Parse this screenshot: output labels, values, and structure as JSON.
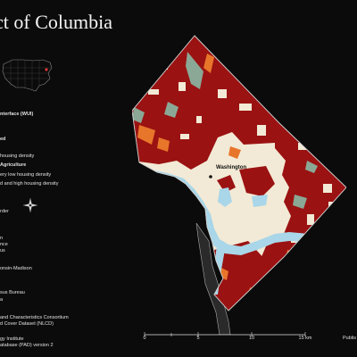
{
  "title": "ct of Columbia",
  "map": {
    "city_label": "Washington",
    "colors": {
      "background": "#0b0b0b",
      "district_fill": "#f2ead6",
      "wui_dark_red": "#9b1212",
      "intermix_orange": "#e8762a",
      "water": "#a9d6e8",
      "vegetation_sage": "#8aa895",
      "boundary": "#bbbbbb"
    }
  },
  "legend": {
    "heading": "nterface (WUI)",
    "l1": "ed",
    "l2": "",
    "l3": "housing density",
    "heading2": "Agriculture",
    "l4": "ery low housing density",
    "l5": "d and high housing density",
    "l6": "rder"
  },
  "credits": {
    "c1": "n",
    "c2": "nce",
    "c3": "us",
    "c4": "onsin-Madison",
    "c5": "sus Bureau",
    "c6": "a",
    "c7": "and Characteristics Consortium",
    "c8": "d Cover Dataset (NLCD)",
    "c9": "gy Institute",
    "c10": "atabase (PAD) version 2"
  },
  "scale": {
    "ticks": [
      "0",
      "5",
      "10",
      "15 km"
    ],
    "values_km": [
      0,
      5,
      10,
      15
    ],
    "sub_ticks_km": [
      0,
      2.5,
      5,
      10,
      15
    ]
  },
  "publisher": "Publis"
}
